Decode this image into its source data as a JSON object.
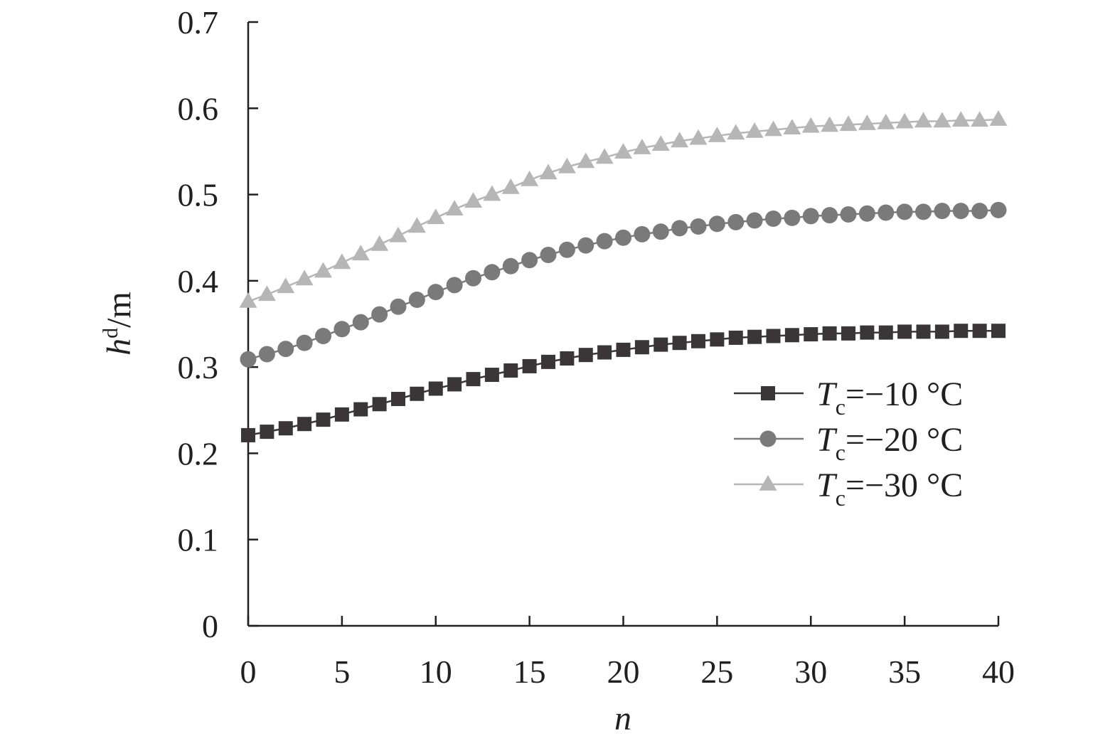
{
  "chart_data": {
    "type": "line",
    "xlabel": "n",
    "ylabel": {
      "main": "h",
      "sup": "d",
      "unit": "/m"
    },
    "xlim": [
      0,
      40
    ],
    "ylim": [
      0,
      0.7
    ],
    "xticks": [
      "0",
      "5",
      "10",
      "15",
      "20",
      "25",
      "30",
      "35",
      "40"
    ],
    "yticks": [
      "0",
      "0.1",
      "0.2",
      "0.3",
      "0.4",
      "0.5",
      "0.6",
      "0.7"
    ],
    "grid": false,
    "legend_position": "right-middle",
    "x": [
      0,
      1,
      2,
      3,
      4,
      5,
      6,
      7,
      8,
      9,
      10,
      11,
      12,
      13,
      14,
      15,
      16,
      17,
      18,
      19,
      20,
      21,
      22,
      23,
      24,
      25,
      26,
      27,
      28,
      29,
      30,
      31,
      32,
      33,
      34,
      35,
      36,
      37,
      38,
      39,
      40
    ],
    "series": [
      {
        "name": "Tc=−10 °C",
        "label": {
          "var": "T",
          "sub": "c",
          "rest": "=−10 °C"
        },
        "marker": "square",
        "color": "#3a3536",
        "values": [
          0.221,
          0.225,
          0.229,
          0.234,
          0.239,
          0.245,
          0.251,
          0.257,
          0.263,
          0.269,
          0.275,
          0.28,
          0.286,
          0.291,
          0.296,
          0.301,
          0.306,
          0.31,
          0.314,
          0.317,
          0.32,
          0.323,
          0.326,
          0.328,
          0.33,
          0.332,
          0.334,
          0.335,
          0.336,
          0.337,
          0.338,
          0.339,
          0.339,
          0.34,
          0.34,
          0.341,
          0.341,
          0.341,
          0.342,
          0.342,
          0.342
        ]
      },
      {
        "name": "Tc=−20 °C",
        "label": {
          "var": "T",
          "sub": "c",
          "rest": "=−20 °C"
        },
        "marker": "circle",
        "color": "#7b7a7b",
        "values": [
          0.309,
          0.315,
          0.321,
          0.328,
          0.336,
          0.344,
          0.352,
          0.361,
          0.37,
          0.378,
          0.387,
          0.395,
          0.403,
          0.41,
          0.417,
          0.424,
          0.43,
          0.436,
          0.441,
          0.446,
          0.45,
          0.454,
          0.457,
          0.461,
          0.463,
          0.466,
          0.468,
          0.47,
          0.472,
          0.473,
          0.475,
          0.476,
          0.477,
          0.478,
          0.479,
          0.48,
          0.48,
          0.481,
          0.481,
          0.481,
          0.482
        ]
      },
      {
        "name": "Tc=−30 °C",
        "label": {
          "var": "T",
          "sub": "c",
          "rest": "=−30 °C"
        },
        "marker": "triangle",
        "color": "#b6b6b6",
        "values": [
          0.376,
          0.384,
          0.393,
          0.402,
          0.411,
          0.421,
          0.431,
          0.442,
          0.452,
          0.463,
          0.473,
          0.483,
          0.492,
          0.5,
          0.508,
          0.517,
          0.525,
          0.532,
          0.538,
          0.543,
          0.549,
          0.554,
          0.558,
          0.562,
          0.565,
          0.568,
          0.571,
          0.573,
          0.575,
          0.577,
          0.579,
          0.58,
          0.581,
          0.582,
          0.583,
          0.584,
          0.585,
          0.585,
          0.586,
          0.586,
          0.587
        ]
      }
    ]
  }
}
